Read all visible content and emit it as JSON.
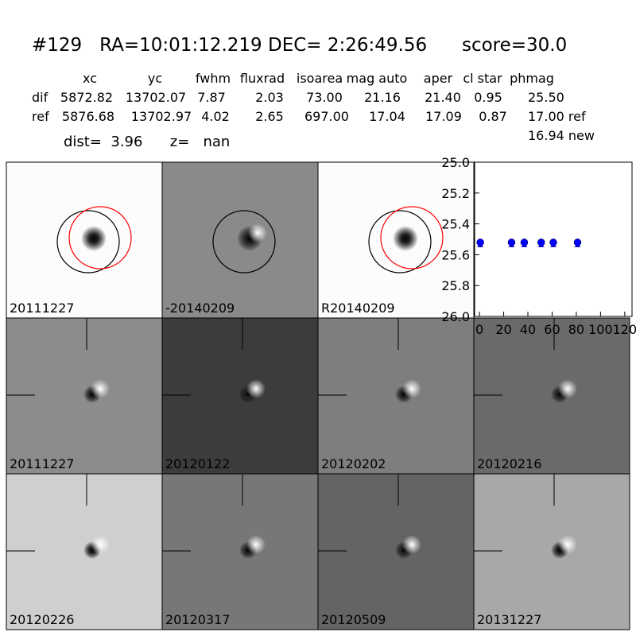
{
  "header": {
    "title": "#129   RA=10:01:12.219 DEC= 2:26:49.56      score=30.0"
  },
  "table": {
    "columns": [
      "xc",
      "yc",
      "fwhm",
      "fluxrad",
      "isoarea",
      "mag auto",
      "aper",
      "cl star",
      "phmag"
    ],
    "rows": [
      [
        "dif",
        "5872.82",
        "13702.07",
        "7.87",
        "2.03",
        "73.00",
        "21.16",
        "21.40",
        "0.95",
        "25.50"
      ],
      [
        "ref",
        "5876.68",
        "13702.97",
        "4.02",
        "2.65",
        "697.00",
        "17.04",
        "17.09",
        "0.87",
        "17.00 ref"
      ]
    ],
    "extra": "16.94 new"
  },
  "info": "dist=  3.96      z=   nan",
  "panels": [
    {
      "label": "20111227",
      "color": "#000000"
    },
    {
      "label": "-20140209",
      "color": "#000000"
    },
    {
      "label": "R20140209",
      "color": "#000000"
    },
    {
      "label": "20111227",
      "color": "#ff0000"
    },
    {
      "label": "20120122",
      "color": "#000000"
    },
    {
      "label": "20120202",
      "color": "#000000"
    },
    {
      "label": "20120216",
      "color": "#000000"
    },
    {
      "label": "20120226",
      "color": "#000000"
    },
    {
      "label": "20120317",
      "color": "#000000"
    },
    {
      "label": "20120509",
      "color": "#000000"
    },
    {
      "label": "20131227",
      "color": "#000000"
    }
  ],
  "chart_data": {
    "type": "scatter",
    "x": [
      0.7,
      26.5,
      37,
      51,
      61,
      81
    ],
    "series": [
      {
        "color": "#0000ff",
        "values": [
          25.52,
          25.52,
          25.52,
          25.52,
          25.52,
          25.52
        ]
      }
    ],
    "xlim": [
      -4,
      126
    ],
    "xticks": [
      0,
      20,
      40,
      60,
      80,
      100,
      120
    ],
    "ylim": [
      25,
      26
    ],
    "invert_y": true,
    "yticks": [
      {
        "value": 25,
        "label": "25.0"
      },
      25.2,
      25.4,
      25.6,
      25.8,
      {
        "value": 26,
        "label": "26.0"
      }
    ]
  }
}
